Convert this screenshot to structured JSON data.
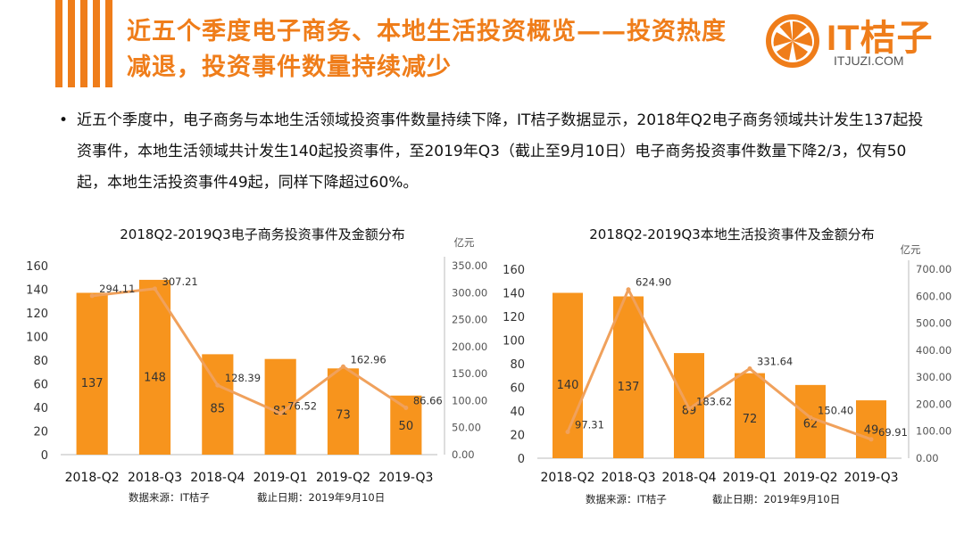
{
  "header": {
    "title": "近五个季度电子商务、本地生活投资概览——投资热度减退，投资事件数量持续减少",
    "logo_text": "IT桔子",
    "logo_url": "ITJUZI.COM"
  },
  "summary": {
    "text": "近五个季度中，电子商务与本地生活领域投资事件数量持续下降，IT桔子数据显示，2018年Q2电子商务领域共计发生137起投资事件，本地生活领域共计发生140起投资事件，至2019年Q3（截止至9月10日）电子商务投资事件数量下降2/3，仅有50起，本地生活投资事件49起，同样下降超过60%。"
  },
  "chart_data": [
    {
      "type": "bar",
      "title": "2018Q2-2019Q3电子商务投资事件及金额分布",
      "categories": [
        "2018-Q2",
        "2018-Q3",
        "2018-Q4",
        "2019-Q1",
        "2019-Q2",
        "2019-Q3"
      ],
      "series": [
        {
          "type": "bar",
          "values": [
            137,
            148,
            85,
            81,
            73,
            50
          ]
        },
        {
          "type": "line",
          "axis": "right",
          "values": [
            294.11,
            307.21,
            128.39,
            76.52,
            162.96,
            86.66
          ]
        }
      ],
      "left_axis": {
        "ylim": [
          0,
          160
        ],
        "ticks": [
          "0",
          "20",
          "40",
          "60",
          "80",
          "100",
          "120",
          "140",
          "160"
        ]
      },
      "right_axis": {
        "unit": "亿元",
        "ylim": [
          0,
          350
        ],
        "ticks": [
          "0.00",
          "50.00",
          "100.00",
          "150.00",
          "200.00",
          "250.00",
          "300.00",
          "350.00"
        ]
      },
      "bar_labels": [
        "137",
        "148",
        "85",
        "81",
        "73",
        "50"
      ],
      "line_labels": [
        "294.11",
        "307.21",
        "128.39",
        "76.52",
        "162.96",
        "86.66"
      ],
      "source": "数据来源：IT桔子",
      "cutoff": "截止日期：2019年9月10日",
      "colors": {
        "bar": "#f7941d",
        "line": "#f0a15c",
        "axis": "#bbbbbb"
      }
    },
    {
      "type": "bar",
      "title": "2018Q2-2019Q3本地生活投资事件及金额分布",
      "categories": [
        "2018-Q2",
        "2018-Q3",
        "2018-Q4",
        "2019-Q1",
        "2019-Q2",
        "2019-Q3"
      ],
      "series": [
        {
          "type": "bar",
          "values": [
            140,
            137,
            89,
            72,
            62,
            49
          ]
        },
        {
          "type": "line",
          "axis": "right",
          "values": [
            97.31,
            624.9,
            183.62,
            331.64,
            150.4,
            69.91
          ]
        }
      ],
      "left_axis": {
        "ylim": [
          0,
          160
        ],
        "ticks": [
          "0",
          "20",
          "40",
          "60",
          "80",
          "100",
          "120",
          "140",
          "160"
        ]
      },
      "right_axis": {
        "unit": "亿元",
        "ylim": [
          0,
          700
        ],
        "ticks": [
          "0.00",
          "100.00",
          "200.00",
          "300.00",
          "400.00",
          "500.00",
          "600.00",
          "700.00"
        ]
      },
      "bar_labels": [
        "140",
        "137",
        "89",
        "72",
        "62",
        "49"
      ],
      "line_labels": [
        "97.31",
        "624.90",
        "183.62",
        "331.64",
        "150.40",
        "69.91"
      ],
      "source": "数据来源：IT桔子",
      "cutoff": "截止日期：2019年9月10日",
      "colors": {
        "bar": "#f7941d",
        "line": "#f0a15c",
        "axis": "#bbbbbb"
      }
    }
  ]
}
